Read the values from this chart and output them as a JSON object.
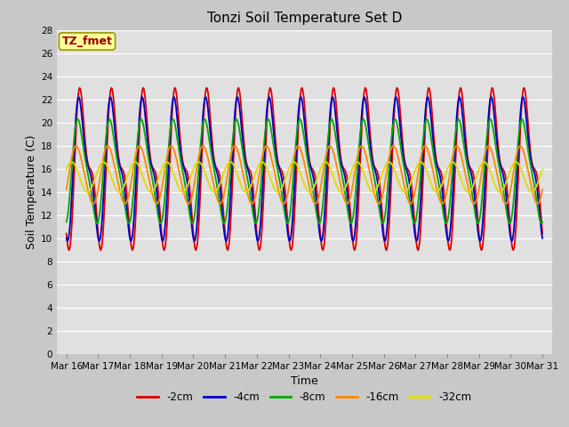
{
  "title": "Tonzi Soil Temperature Set D",
  "xlabel": "Time",
  "ylabel": "Soil Temperature (C)",
  "ylim": [
    0,
    28
  ],
  "annotation_label": "TZ_fmet",
  "x_tick_labels": [
    "Mar 16",
    "Mar 17",
    "Mar 18",
    "Mar 19",
    "Mar 20",
    "Mar 21",
    "Mar 22",
    "Mar 23",
    "Mar 24",
    "Mar 25",
    "Mar 26",
    "Mar 27",
    "Mar 28",
    "Mar 29",
    "Mar 30",
    "Mar 31"
  ],
  "series": [
    {
      "label": "-2cm",
      "color": "#dd0000",
      "amplitude": 7.0,
      "mean": 16.0,
      "phase_shift": 0.0,
      "peak_sharpness": 3.0
    },
    {
      "label": "-4cm",
      "color": "#0000cc",
      "amplitude": 6.2,
      "mean": 16.0,
      "phase_shift": 0.25,
      "peak_sharpness": 2.5
    },
    {
      "label": "-8cm",
      "color": "#00aa00",
      "amplitude": 4.5,
      "mean": 15.8,
      "phase_shift": 0.55,
      "peak_sharpness": 1.5
    },
    {
      "label": "-16cm",
      "color": "#ff8800",
      "amplitude": 2.5,
      "mean": 15.5,
      "phase_shift": 1.1,
      "peak_sharpness": 0.5
    },
    {
      "label": "-32cm",
      "color": "#dddd00",
      "amplitude": 1.3,
      "mean": 15.3,
      "phase_shift": 2.1,
      "peak_sharpness": 0.0
    }
  ],
  "fig_bg_color": "#c8c8c8",
  "plot_bg_color": "#e0e0e0",
  "annotation_bg": "#ffff99",
  "annotation_border": "#999900",
  "legend_labels": [
    "-2cm",
    "-4cm",
    "-8cm",
    "-16cm",
    "-32cm"
  ],
  "legend_colors": [
    "#dd0000",
    "#0000cc",
    "#00aa00",
    "#ff8800",
    "#dddd00"
  ],
  "title_fontsize": 11,
  "axis_label_fontsize": 9,
  "tick_fontsize": 7.5,
  "linewidth": 1.3
}
